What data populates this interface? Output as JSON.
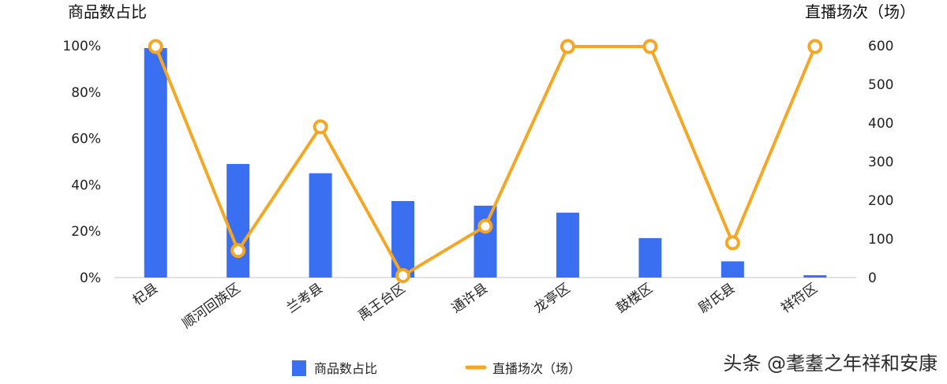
{
  "chart_data": {
    "type": "bar+line",
    "categories": [
      "杞县",
      "顺河回族区",
      "兰考县",
      "禹王台区",
      "通许县",
      "龙亭区",
      "鼓楼区",
      "尉氏县",
      "祥符区"
    ],
    "series": [
      {
        "name": "商品数占比",
        "type": "bar",
        "axis": "left",
        "color": "#3A6FF2",
        "values": [
          99,
          49,
          45,
          33,
          31,
          28,
          17,
          7,
          1
        ]
      },
      {
        "name": "直播场次（场）",
        "type": "line",
        "axis": "right",
        "color": "#F5A623",
        "values": [
          598,
          70,
          390,
          5,
          133,
          598,
          598,
          90,
          598
        ]
      }
    ],
    "y_left": {
      "title": "商品数占比",
      "ticks": [
        "0%",
        "20%",
        "40%",
        "60%",
        "80%",
        "100%"
      ],
      "range": [
        0,
        100
      ]
    },
    "y_right": {
      "title": "直播场次（场）",
      "ticks": [
        "0",
        "100",
        "200",
        "300",
        "400",
        "500",
        "600"
      ],
      "range": [
        0,
        600
      ]
    },
    "legend_position": "bottom",
    "legend": [
      {
        "label": "商品数占比",
        "color": "#3A6FF2"
      },
      {
        "label": "直播场次（场）",
        "color": "#F5A623"
      }
    ],
    "grid": false
  },
  "watermark": "头条 @耄耋之年祥和安康"
}
